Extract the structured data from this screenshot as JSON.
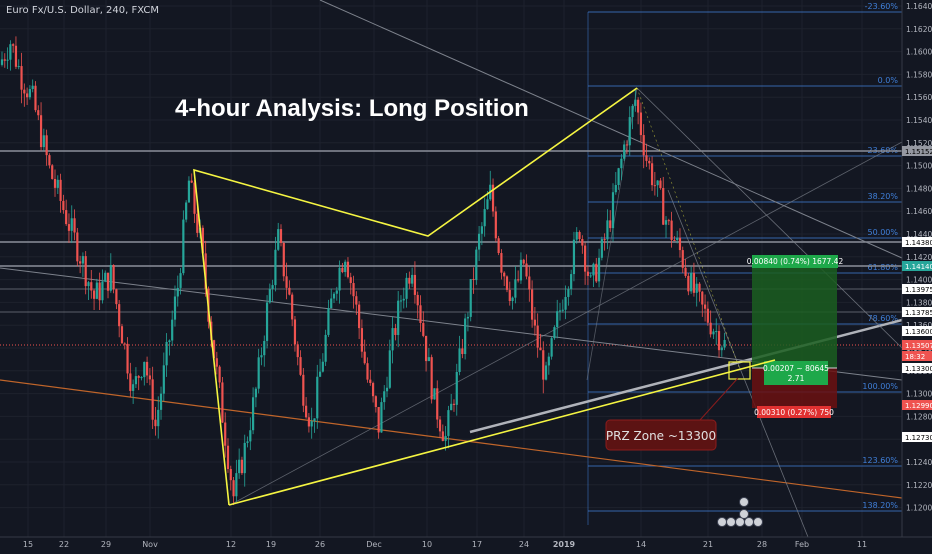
{
  "symbol_label": "Euro Fx/U.S. Dollar, 240, FXCM",
  "colors": {
    "background": "#131722",
    "up": "#26a69a",
    "down": "#ef5350",
    "yellow": "#f5f542",
    "fib": "#3f7fd9",
    "gray_line": "#9aa0a8",
    "orange_line": "#c0652a",
    "profit_zone": "#1b5e20",
    "loss_zone": "#6b1111",
    "callout": "#5c1313"
  },
  "chart_data": {
    "type": "candlestick",
    "title": "4-hour Analysis: Long Position",
    "y_range": [
      1.119,
      1.165
    ],
    "y_ticks": [
      "1.16400",
      "1.16200",
      "1.16000",
      "1.15800",
      "1.15600",
      "1.15400",
      "1.15200",
      "1.15000",
      "1.14800",
      "1.14600",
      "1.14400",
      "1.14200",
      "1.14000",
      "1.13800",
      "1.13600",
      "1.13400",
      "1.13200",
      "1.13000",
      "1.12800",
      "1.12600",
      "1.12400",
      "1.12200",
      "1.12000"
    ],
    "x_ticks": [
      "15",
      "22",
      "29",
      "Nov",
      "12",
      "19",
      "26",
      "Dec",
      "10",
      "17",
      "24",
      "2019",
      "14",
      "21",
      "28",
      "Feb",
      "11"
    ],
    "price_path": [
      [
        0,
        1.159
      ],
      [
        2,
        1.161
      ],
      [
        4,
        1.158
      ],
      [
        6,
        1.156
      ],
      [
        9,
        1.15
      ],
      [
        12,
        1.146
      ],
      [
        15,
        1.142
      ],
      [
        17,
        1.139
      ],
      [
        20,
        1.141
      ],
      [
        22,
        1.136
      ],
      [
        24,
        1.131
      ],
      [
        26,
        1.134
      ],
      [
        28,
        1.128
      ],
      [
        30,
        1.134
      ],
      [
        32,
        1.14
      ],
      [
        34,
        1.149
      ],
      [
        36,
        1.144
      ],
      [
        38,
        1.136
      ],
      [
        40,
        1.129
      ],
      [
        42,
        1.122
      ],
      [
        44,
        1.126
      ],
      [
        46,
        1.131
      ],
      [
        48,
        1.138
      ],
      [
        50,
        1.144
      ],
      [
        52,
        1.139
      ],
      [
        54,
        1.132
      ],
      [
        56,
        1.128
      ],
      [
        58,
        1.134
      ],
      [
        60,
        1.14
      ],
      [
        62,
        1.143
      ],
      [
        64,
        1.138
      ],
      [
        66,
        1.132
      ],
      [
        68,
        1.128
      ],
      [
        70,
        1.134
      ],
      [
        72,
        1.139
      ],
      [
        74,
        1.142
      ],
      [
        76,
        1.136
      ],
      [
        78,
        1.13
      ],
      [
        80,
        1.127
      ],
      [
        82,
        1.132
      ],
      [
        84,
        1.138
      ],
      [
        86,
        1.144
      ],
      [
        88,
        1.148
      ],
      [
        90,
        1.142
      ],
      [
        92,
        1.139
      ],
      [
        94,
        1.142
      ],
      [
        96,
        1.136
      ],
      [
        98,
        1.132
      ],
      [
        100,
        1.137
      ],
      [
        102,
        1.141
      ],
      [
        104,
        1.145
      ],
      [
        106,
        1.14
      ],
      [
        108,
        1.143
      ],
      [
        110,
        1.147
      ],
      [
        112,
        1.152
      ],
      [
        114,
        1.156
      ],
      [
        116,
        1.151
      ],
      [
        118,
        1.148
      ],
      [
        120,
        1.145
      ],
      [
        122,
        1.143
      ],
      [
        124,
        1.14
      ],
      [
        126,
        1.138
      ],
      [
        128,
        1.1365
      ],
      [
        130,
        1.135
      ]
    ],
    "y_axis_badges": [
      {
        "value": "1.15152",
        "bg": "#9598a1",
        "fg": "#000000"
      },
      {
        "value": "1.14380",
        "bg": "#ffffff",
        "fg": "#000000"
      },
      {
        "value": "1.14140",
        "bg": "#26a69a",
        "fg": "#ffffff"
      },
      {
        "value": "1.13975",
        "bg": "#ffffff",
        "fg": "#000000"
      },
      {
        "value": "1.13785",
        "bg": "#ffffff",
        "fg": "#000000"
      },
      {
        "value": "1.13600",
        "bg": "#ffffff",
        "fg": "#000000"
      },
      {
        "value": "1.13507",
        "bg": "#ef5350",
        "fg": "#ffffff"
      },
      {
        "value": "18:32",
        "bg": "#ef5350",
        "fg": "#ffffff"
      },
      {
        "value": "1.13300",
        "bg": "#ffffff",
        "fg": "#000000"
      },
      {
        "value": "1.12990",
        "bg": "#ef5350",
        "fg": "#ffffff"
      },
      {
        "value": "1.12730",
        "bg": "#ffffff",
        "fg": "#000000"
      }
    ],
    "fib_levels": [
      {
        "label": "-23.60%"
      },
      {
        "label": "0.0%"
      },
      {
        "label": "23.60%"
      },
      {
        "label": "38.20%"
      },
      {
        "label": "50.00%"
      },
      {
        "label": "61.80%"
      },
      {
        "label": "78.60%"
      },
      {
        "label": "100.00%"
      },
      {
        "label": "123.60%"
      },
      {
        "label": "138.20%"
      }
    ],
    "position": {
      "target_label": "0.00840 (0.74%) 1677.42",
      "entry_label_line1": "0.00207 ~ 80645",
      "entry_label_line2": "2.71",
      "stop_label": "0.00310 (0.27%) 750"
    },
    "annotation": "PRZ Zone ~13300"
  }
}
